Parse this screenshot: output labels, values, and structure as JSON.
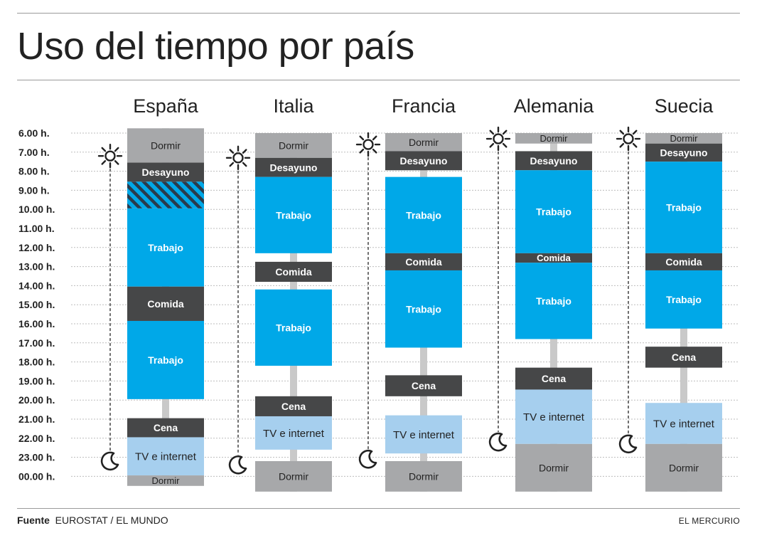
{
  "title": "Uso del tiempo por país",
  "footer": {
    "source_label": "Fuente",
    "source": "EUROSTAT / EL MUNDO",
    "credit": "EL MERCURIO"
  },
  "colors": {
    "sleep": "#a7a8aa",
    "meal": "#464748",
    "work": "#00a8e8",
    "leisure": "#a6cfee",
    "connector": "#c9c9c9",
    "grid": "#bdbdbd",
    "hatch_a": "#00a8e8",
    "hatch_b": "#2a3b4c"
  },
  "icons": {
    "wake": "sun-icon",
    "sleep": "moon-icon"
  },
  "chart_data": {
    "type": "timeline",
    "y_axis": {
      "ticks": [
        "6.00 h.",
        "7.00 h.",
        "8.00 h.",
        "9.00 h.",
        "10.00 h.",
        "11.00 h.",
        "12.00 h.",
        "13.00 h.",
        "14.00 h.",
        "15.00 h.",
        "16.00 h.",
        "17.00 h.",
        "18.00 h.",
        "19.00 h.",
        "20.00 h.",
        "21.00 h.",
        "22.00 h.",
        "23.00 h.",
        "00.00 h."
      ],
      "range_hours": [
        6,
        24
      ],
      "grid": true
    },
    "countries": [
      {
        "name": "España",
        "wake": 7.2,
        "sleep": 23.2,
        "blocks": [
          {
            "label": "Dormir",
            "type": "sleep",
            "start": 5.75,
            "end": 7.55
          },
          {
            "label": "Desayuno",
            "type": "meal",
            "start": 7.55,
            "end": 8.55
          },
          {
            "label": "",
            "type": "hatch",
            "start": 8.55,
            "end": 9.95
          },
          {
            "label": "Trabajo",
            "type": "work",
            "start": 9.95,
            "end": 14.05
          },
          {
            "label": "Comida",
            "type": "meal",
            "start": 14.05,
            "end": 15.85
          },
          {
            "label": "Trabajo",
            "type": "work",
            "start": 15.85,
            "end": 19.95
          },
          {
            "label": "Cena",
            "type": "meal",
            "start": 20.95,
            "end": 21.95
          },
          {
            "label": "TV e internet",
            "type": "leisure",
            "start": 21.95,
            "end": 23.95
          },
          {
            "label": "Dormir",
            "type": "sleep",
            "start": 23.95,
            "end": 24.5
          }
        ]
      },
      {
        "name": "Italia",
        "wake": 7.3,
        "sleep": 23.4,
        "blocks": [
          {
            "label": "Dormir",
            "type": "sleep",
            "start": 6.0,
            "end": 7.3
          },
          {
            "label": "Desayuno",
            "type": "meal",
            "start": 7.3,
            "end": 8.3
          },
          {
            "label": "Trabajo",
            "type": "work",
            "start": 8.3,
            "end": 12.3
          },
          {
            "label": "Comida",
            "type": "meal",
            "start": 12.75,
            "end": 13.8
          },
          {
            "label": "Trabajo",
            "type": "work",
            "start": 14.2,
            "end": 18.2
          },
          {
            "label": "Cena",
            "type": "meal",
            "start": 19.8,
            "end": 20.85
          },
          {
            "label": "TV e internet",
            "type": "leisure",
            "start": 20.85,
            "end": 22.6
          },
          {
            "label": "Dormir",
            "type": "sleep",
            "start": 23.2,
            "end": 24.8
          }
        ]
      },
      {
        "name": "Francia",
        "wake": 6.6,
        "sleep": 23.1,
        "blocks": [
          {
            "label": "Dormir",
            "type": "sleep",
            "start": 6.0,
            "end": 6.95
          },
          {
            "label": "Desayuno",
            "type": "meal",
            "start": 6.95,
            "end": 7.95
          },
          {
            "label": "Trabajo",
            "type": "work",
            "start": 8.3,
            "end": 12.3
          },
          {
            "label": "Comida",
            "type": "meal",
            "start": 12.3,
            "end": 13.2
          },
          {
            "label": "Trabajo",
            "type": "work",
            "start": 13.2,
            "end": 17.25
          },
          {
            "label": "Cena",
            "type": "meal",
            "start": 18.7,
            "end": 19.8
          },
          {
            "label": "TV e internet",
            "type": "leisure",
            "start": 20.8,
            "end": 22.8
          },
          {
            "label": "Dormir",
            "type": "sleep",
            "start": 23.2,
            "end": 24.8
          }
        ]
      },
      {
        "name": "Alemania",
        "wake": 6.3,
        "sleep": 22.2,
        "blocks": [
          {
            "label": "Dormir",
            "type": "sleep",
            "start": 6.0,
            "end": 6.55
          },
          {
            "label": "Desayuno",
            "type": "meal",
            "start": 6.95,
            "end": 7.95
          },
          {
            "label": "Trabajo",
            "type": "work",
            "start": 7.95,
            "end": 12.3
          },
          {
            "label": "Comida",
            "type": "meal",
            "start": 12.3,
            "end": 12.8
          },
          {
            "label": "Trabajo",
            "type": "work",
            "start": 12.8,
            "end": 16.8
          },
          {
            "label": "Cena",
            "type": "meal",
            "start": 18.3,
            "end": 19.45
          },
          {
            "label": "TV e internet",
            "type": "leisure",
            "start": 19.45,
            "end": 22.3
          },
          {
            "label": "Dormir",
            "type": "sleep",
            "start": 22.3,
            "end": 24.8
          }
        ]
      },
      {
        "name": "Suecia",
        "wake": 6.3,
        "sleep": 22.3,
        "blocks": [
          {
            "label": "Dormir",
            "type": "sleep",
            "start": 6.0,
            "end": 6.55
          },
          {
            "label": "Desayuno",
            "type": "meal",
            "start": 6.55,
            "end": 7.5
          },
          {
            "label": "Trabajo",
            "type": "work",
            "start": 7.5,
            "end": 12.3
          },
          {
            "label": "Comida",
            "type": "meal",
            "start": 12.3,
            "end": 13.2
          },
          {
            "label": "Trabajo",
            "type": "work",
            "start": 13.2,
            "end": 16.25
          },
          {
            "label": "Cena",
            "type": "meal",
            "start": 17.2,
            "end": 18.3
          },
          {
            "label": "TV e internet",
            "type": "leisure",
            "start": 20.15,
            "end": 22.3
          },
          {
            "label": "Dormir",
            "type": "sleep",
            "start": 22.3,
            "end": 24.8
          }
        ]
      }
    ]
  }
}
